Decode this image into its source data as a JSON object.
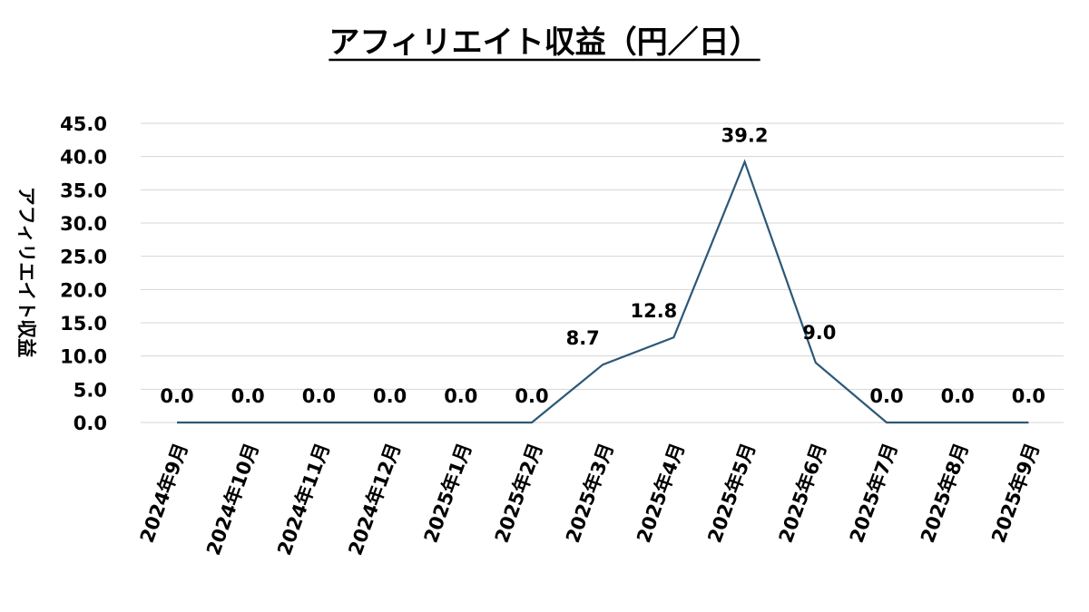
{
  "chart_data": {
    "type": "line",
    "title": "アフィリエイト収益（円／日）",
    "xlabel": "",
    "ylabel": "アフィリエイト収益",
    "categories": [
      "2024年9月",
      "2024年10月",
      "2024年11月",
      "2024年12月",
      "2025年1月",
      "2025年2月",
      "2025年3月",
      "2025年4月",
      "2025年5月",
      "2025年6月",
      "2025年7月",
      "2025年8月",
      "2025年9月"
    ],
    "series": [
      {
        "values": [
          0.0,
          0.0,
          0.0,
          0.0,
          0.0,
          0.0,
          8.7,
          12.8,
          39.2,
          9.0,
          0.0,
          0.0,
          0.0
        ]
      }
    ],
    "data_labels": [
      "0.0",
      "0.0",
      "0.0",
      "0.0",
      "0.0",
      "0.0",
      "8.7",
      "12.8",
      "39.2",
      "9.0",
      "0.0",
      "0.0",
      "0.0"
    ],
    "y_ticks": [
      "0.0",
      "5.0",
      "10.0",
      "15.0",
      "20.0",
      "25.0",
      "30.0",
      "35.0",
      "40.0",
      "45.0"
    ],
    "ylim": [
      0,
      45
    ],
    "grid": true,
    "legend": "none",
    "colors": {
      "line": "#2c5878",
      "grid": "#d4d4d4",
      "text": "#000000"
    }
  }
}
